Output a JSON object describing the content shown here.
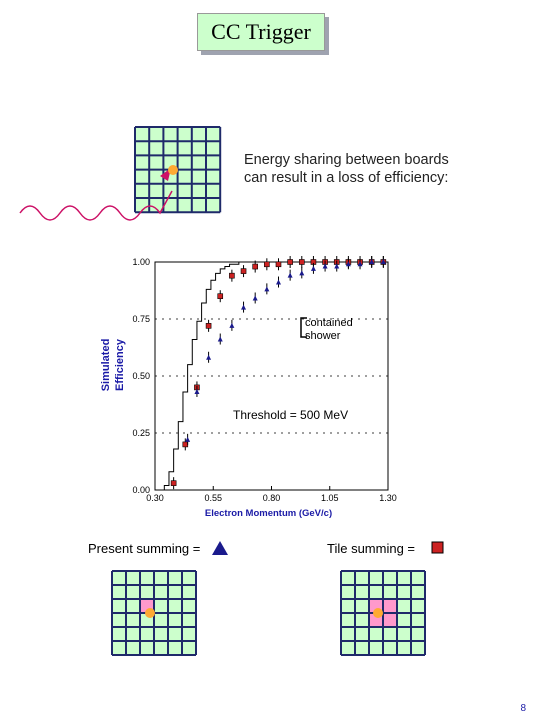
{
  "slide": {
    "title": "CC Trigger",
    "note_line1": "Energy sharing between boards",
    "note_line2": "can result in a loss of efficiency:",
    "present_summing_label": "Present summing =",
    "tile_summing_label": "Tile summing =",
    "page_number": "8"
  },
  "colors": {
    "grid_fill": "#ccffcc",
    "grid_line": "#1f2a6a",
    "hit_dot": "#ffaa33",
    "highlight": "#ff99cc",
    "triangle": "#1a1a8c",
    "square": "#cc2222",
    "ylabel_color": "#1a1aa6"
  },
  "chart_data": {
    "type": "scatter",
    "xlabel": "Electron Momentum (GeV/c)",
    "ylabel_line1": "Simulated",
    "ylabel_line2": "Efficiency",
    "xlim": [
      0.3,
      1.3
    ],
    "ylim": [
      0.0,
      1.0
    ],
    "xticks": [
      "0.30",
      "0.55",
      "0.80",
      "1.05",
      "1.30"
    ],
    "yticks": [
      "0.00",
      "0.25",
      "0.50",
      "0.75",
      "1.00"
    ],
    "annotation_contained": [
      "contained",
      "shower"
    ],
    "annotation_threshold": "Threshold = 500 MeV",
    "series": [
      {
        "marker": "step",
        "x": [
          0.32,
          0.34,
          0.36,
          0.38,
          0.4,
          0.42,
          0.44,
          0.46,
          0.48,
          0.5,
          0.52,
          0.54,
          0.56,
          0.58,
          0.6,
          0.62,
          0.64,
          0.66,
          0.7,
          0.75,
          0.8,
          0.9,
          1.0,
          1.1,
          1.2,
          1.3
        ],
        "y": [
          0.0,
          0.02,
          0.08,
          0.18,
          0.3,
          0.43,
          0.55,
          0.66,
          0.74,
          0.82,
          0.88,
          0.92,
          0.95,
          0.97,
          0.98,
          0.99,
          0.99,
          1.0,
          1.0,
          1.0,
          1.0,
          1.0,
          1.0,
          1.0,
          1.0,
          1.0
        ]
      },
      {
        "marker": "square",
        "x": [
          0.38,
          0.43,
          0.48,
          0.53,
          0.58,
          0.63,
          0.68,
          0.73,
          0.78,
          0.83,
          0.88,
          0.93,
          0.98,
          1.03,
          1.08,
          1.13,
          1.18,
          1.23,
          1.28
        ],
        "y": [
          0.03,
          0.2,
          0.45,
          0.72,
          0.85,
          0.94,
          0.96,
          0.98,
          0.99,
          0.99,
          1.0,
          1.0,
          1.0,
          1.0,
          1.0,
          1.0,
          1.0,
          1.0,
          1.0
        ]
      },
      {
        "marker": "triangle",
        "x": [
          0.44,
          0.48,
          0.53,
          0.58,
          0.63,
          0.68,
          0.73,
          0.78,
          0.83,
          0.88,
          0.93,
          0.98,
          1.03,
          1.08,
          1.13,
          1.18,
          1.23,
          1.28
        ],
        "y": [
          0.22,
          0.43,
          0.58,
          0.66,
          0.72,
          0.8,
          0.84,
          0.88,
          0.91,
          0.94,
          0.95,
          0.97,
          0.98,
          0.98,
          0.99,
          0.99,
          1.0,
          1.0
        ]
      }
    ]
  }
}
